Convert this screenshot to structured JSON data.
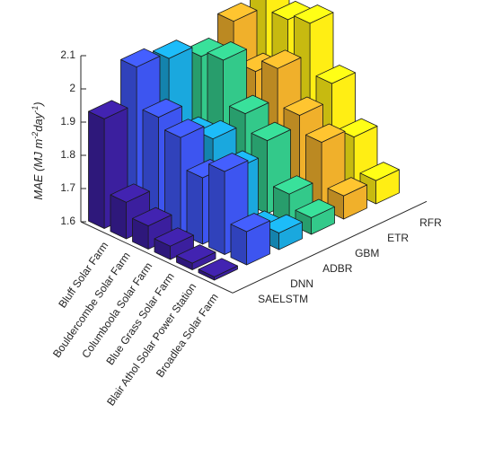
{
  "chart_data": {
    "type": "bar3d",
    "title": "",
    "zlabel": {
      "main": "MAE (MJ m",
      "sup1": "-2",
      "mid": "day",
      "sup2": "-1",
      "end": ")"
    },
    "zlim": [
      1.6,
      2.1
    ],
    "zticks": [
      "1.6",
      "1.7",
      "1.8",
      "1.9",
      "2",
      "2.1"
    ],
    "grid": false,
    "sites": [
      "Bluff Solar Farm",
      "Bouldercombe Solar Farm",
      "Columboola Solar Farm",
      "Blue Grass Solar Farm",
      "Blair Athol Solar Power Station",
      "Broadlea Solar Farm"
    ],
    "models": [
      "SAELSTM",
      "DNN",
      "ADBR",
      "GBM",
      "ETR",
      "RFR"
    ],
    "colors": [
      "#3b1f9e",
      "#3d55f0",
      "#1aa8de",
      "#33c98a",
      "#f0b02b",
      "#ffee14"
    ],
    "values": [
      [
        1.93,
        2.04,
        2.02,
        1.98,
        2.04,
        2.14
      ],
      [
        1.71,
        1.92,
        1.82,
        2.0,
        1.92,
        2.03
      ],
      [
        1.67,
        1.89,
        1.84,
        1.87,
        1.96,
        2.05
      ],
      [
        1.64,
        1.8,
        1.78,
        1.82,
        1.85,
        1.9
      ],
      [
        1.62,
        1.85,
        1.63,
        1.69,
        1.8,
        1.77
      ],
      [
        1.61,
        1.7,
        1.65,
        1.65,
        1.67,
        1.67
      ]
    ]
  }
}
